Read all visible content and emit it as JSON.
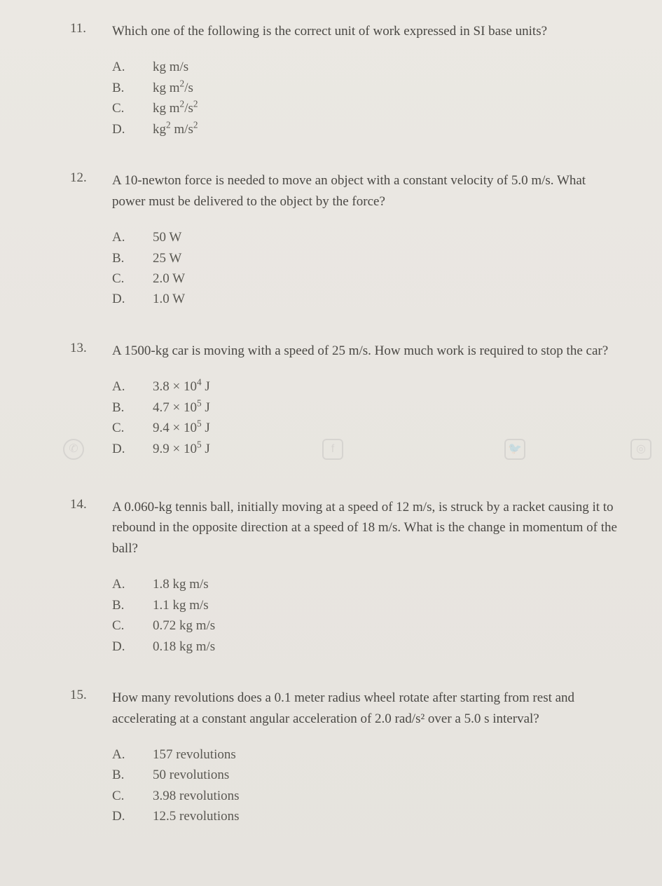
{
  "questions": [
    {
      "number": "11.",
      "text": "Which one of the following is the correct unit of work expressed in SI base units?",
      "options": [
        {
          "letter": "A.",
          "html": "kg m/s"
        },
        {
          "letter": "B.",
          "html": "kg m<sup>2</sup>/s"
        },
        {
          "letter": "C.",
          "html": "kg m<sup>2</sup>/s<sup>2</sup>"
        },
        {
          "letter": "D.",
          "html": "kg<sup>2</sup> m/s<sup>2</sup>"
        }
      ]
    },
    {
      "number": "12.",
      "text": "A 10-newton force is needed to move an object with a constant velocity of 5.0 m/s. What power must be delivered to the object by the force?",
      "options": [
        {
          "letter": "A.",
          "html": "50 W"
        },
        {
          "letter": "B.",
          "html": "25 W"
        },
        {
          "letter": "C.",
          "html": "2.0 W"
        },
        {
          "letter": "D.",
          "html": "1.0 W"
        }
      ]
    },
    {
      "number": "13.",
      "text": "A 1500-kg car is moving with a speed of 25 m/s. How much work is required to stop the car?",
      "options": [
        {
          "letter": "A.",
          "html": "3.8 × 10<sup>4</sup> J"
        },
        {
          "letter": "B.",
          "html": "4.7 × 10<sup>5</sup> J"
        },
        {
          "letter": "C.",
          "html": "9.4 × 10<sup>5</sup> J"
        },
        {
          "letter": "D.",
          "html": "9.9 × 10<sup>5</sup> J"
        }
      ],
      "watermark": true
    },
    {
      "number": "14.",
      "text": "A 0.060-kg tennis ball, initially moving at a speed of 12 m/s, is struck by a racket causing it to rebound in the opposite direction at a speed of 18 m/s. What is the change in momentum of the ball?",
      "options": [
        {
          "letter": "A.",
          "html": "1.8 kg m/s"
        },
        {
          "letter": "B.",
          "html": "1.1 kg m/s"
        },
        {
          "letter": "C.",
          "html": "0.72 kg m/s"
        },
        {
          "letter": "D.",
          "html": "0.18 kg m/s"
        }
      ]
    },
    {
      "number": "15.",
      "text": "How many revolutions does a 0.1 meter radius wheel rotate after starting from rest and accelerating at a constant angular acceleration of 2.0 rad/s² over a 5.0 s interval?",
      "options": [
        {
          "letter": "A.",
          "html": "157 revolutions"
        },
        {
          "letter": "B.",
          "html": "50 revolutions"
        },
        {
          "letter": "C.",
          "html": "3.98 revolutions"
        },
        {
          "letter": "D.",
          "html": "12.5 revolutions"
        }
      ]
    }
  ]
}
